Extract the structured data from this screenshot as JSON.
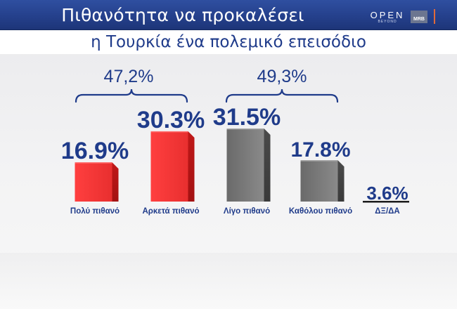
{
  "header": {
    "title": "Πιθανότητα να προκαλέσει",
    "subtitle": "η Τουρκία ένα πολεμικό επεισόδιο",
    "logo_text": "OPEN",
    "logo_subtext": "BEYOND",
    "channel_logo": "MRB"
  },
  "colors": {
    "header_bg": "#243f8a",
    "label_blue": "#1f3b8a",
    "bar_red": "#f03c3c",
    "bar_grey": "#7a7a7a"
  },
  "chart_data": {
    "type": "bar",
    "title": "Πιθανότητα να προκαλέσει η Τουρκία ένα πολεμικό επεισόδιο",
    "unit": "%",
    "categories": [
      "Πολύ πιθανό",
      "Αρκετά πιθανό",
      "Λίγο πιθανό",
      "Καθόλου πιθανό",
      "ΔΞ/ΔΑ"
    ],
    "values": [
      16.9,
      30.3,
      31.5,
      17.8,
      3.6
    ],
    "value_labels": [
      "16.9%",
      "30.3%",
      "31.5%",
      "17.8%",
      "3.6%"
    ],
    "bar_colors": [
      "red",
      "red",
      "grey",
      "grey",
      "none"
    ],
    "groups": [
      {
        "label": "47,2%",
        "categories": [
          "Πολύ πιθανό",
          "Αρκετά πιθανό"
        ]
      },
      {
        "label": "49,3%",
        "categories": [
          "Λίγο πιθανό",
          "Καθόλου πιθανό"
        ]
      }
    ],
    "grid": false,
    "legend": "none"
  }
}
